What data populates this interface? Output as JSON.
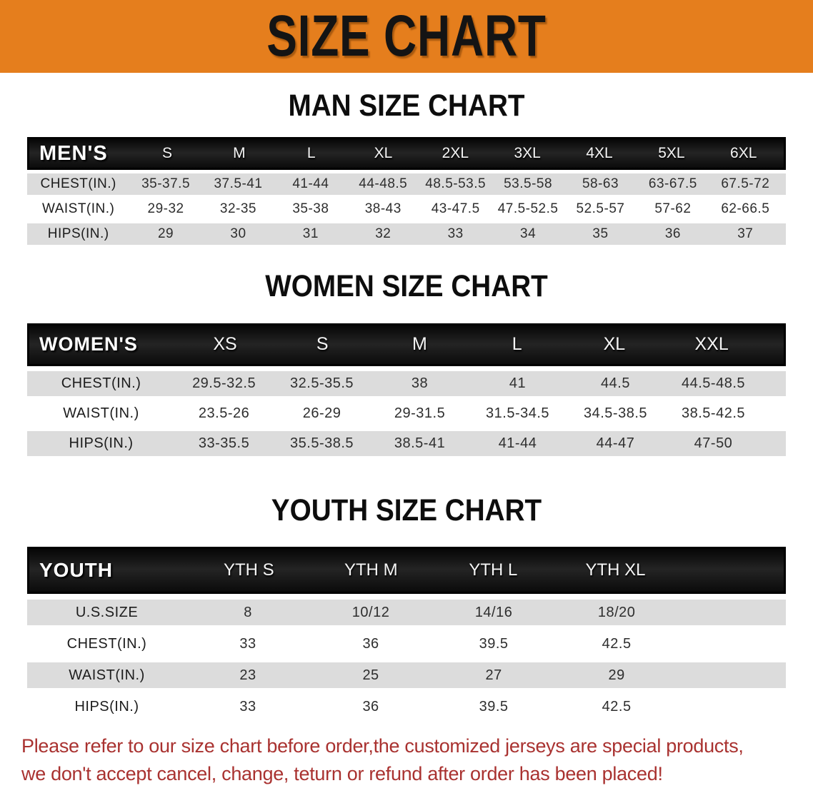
{
  "banner": {
    "title": "SIZE CHART"
  },
  "sections": [
    {
      "id": "men",
      "heading": "MAN SIZE CHART",
      "table": {
        "label": "MEN'S",
        "sizes": [
          "S",
          "M",
          "L",
          "XL",
          "2XL",
          "3XL",
          "4XL",
          "5XL",
          "6XL"
        ],
        "rows": [
          {
            "label": "CHEST(IN.)",
            "values": [
              "35-37.5",
              "37.5-41",
              "41-44",
              "44-48.5",
              "48.5-53.5",
              "53.5-58",
              "58-63",
              "63-67.5",
              "67.5-72"
            ]
          },
          {
            "label": "WAIST(IN.)",
            "values": [
              "29-32",
              "32-35",
              "35-38",
              "38-43",
              "43-47.5",
              "47.5-52.5",
              "52.5-57",
              "57-62",
              "62-66.5"
            ]
          },
          {
            "label": "HIPS(IN.)",
            "values": [
              "29",
              "30",
              "31",
              "32",
              "33",
              "34",
              "35",
              "36",
              "37"
            ]
          }
        ]
      }
    },
    {
      "id": "women",
      "heading": "WOMEN SIZE CHART",
      "table": {
        "label": "WOMEN'S",
        "sizes": [
          "XS",
          "S",
          "M",
          "L",
          "XL",
          "XXL"
        ],
        "rows": [
          {
            "label": "CHEST(IN.)",
            "values": [
              "29.5-32.5",
              "32.5-35.5",
              "38",
              "41",
              "44.5",
              "44.5-48.5"
            ]
          },
          {
            "label": "WAIST(IN.)",
            "values": [
              "23.5-26",
              "26-29",
              "29-31.5",
              "31.5-34.5",
              "34.5-38.5",
              "38.5-42.5"
            ]
          },
          {
            "label": "HIPS(IN.)",
            "values": [
              "33-35.5",
              "35.5-38.5",
              "38.5-41",
              "41-44",
              "44-47",
              "47-50"
            ]
          }
        ]
      }
    },
    {
      "id": "youth",
      "heading": "YOUTH SIZE CHART",
      "table": {
        "label": "YOUTH",
        "sizes": [
          "YTH S",
          "YTH M",
          "YTH L",
          "YTH XL"
        ],
        "rows": [
          {
            "label": "U.S.SIZE",
            "values": [
              "8",
              "10/12",
              "14/16",
              "18/20"
            ]
          },
          {
            "label": "CHEST(IN.)",
            "values": [
              "33",
              "36",
              "39.5",
              "42.5"
            ]
          },
          {
            "label": "WAIST(IN.)",
            "values": [
              "23",
              "25",
              "27",
              "29"
            ]
          },
          {
            "label": "HIPS(IN.)",
            "values": [
              "33",
              "36",
              "39.5",
              "42.5"
            ]
          }
        ]
      }
    }
  ],
  "disclaimer": {
    "line1": "Please refer to our size chart before order,the customized jerseys are special products,",
    "line2": "we don't accept cancel, change, teturn or refund after order has been placed!"
  },
  "colors": {
    "banner_bg": "#e57e1d",
    "header_bar": "#161616",
    "stripe": "#dcdcdc",
    "disclaimer": "#a93230"
  }
}
